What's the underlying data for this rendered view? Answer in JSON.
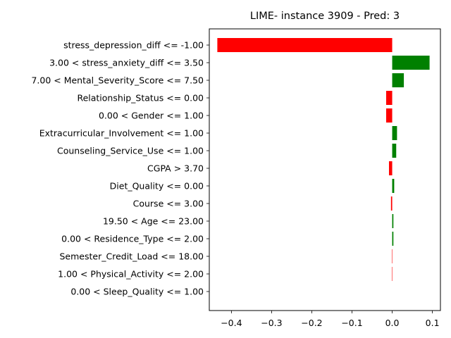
{
  "chart_data": {
    "type": "bar",
    "orientation": "horizontal",
    "title": "LIME- instance 3909 - Pred: 3",
    "xlabel": "",
    "ylabel": "",
    "xlim": [
      -0.455,
      0.12
    ],
    "xticks": [
      -0.4,
      -0.3,
      -0.2,
      -0.1,
      0.0,
      0.1
    ],
    "xtick_labels": [
      "−0.4",
      "−0.3",
      "−0.2",
      "−0.1",
      "0.0",
      "0.1"
    ],
    "grid": false,
    "colors": {
      "positive": "#008000",
      "negative": "#ff0000"
    },
    "categories": [
      "stress_depression_diff <= -1.00",
      "3.00 < stress_anxiety_diff <= 3.50",
      "7.00 < Mental_Severity_Score <= 7.50",
      "Relationship_Status <= 0.00",
      "0.00 < Gender <= 1.00",
      "Extracurricular_Involvement <= 1.00",
      "Counseling_Service_Use <= 1.00",
      "CGPA > 3.70",
      "Diet_Quality <= 0.00",
      "Course <= 3.00",
      "19.50 < Age <= 23.00",
      "0.00 < Residence_Type <= 2.00",
      "Semester_Credit_Load <= 18.00",
      "1.00 < Physical_Activity <= 2.00",
      "0.00 < Sleep_Quality <= 1.00"
    ],
    "values": [
      -0.435,
      0.093,
      0.029,
      -0.015,
      -0.015,
      0.012,
      0.01,
      -0.008,
      0.005,
      -0.003,
      0.003,
      0.003,
      -0.001,
      -0.001,
      0.0
    ]
  }
}
